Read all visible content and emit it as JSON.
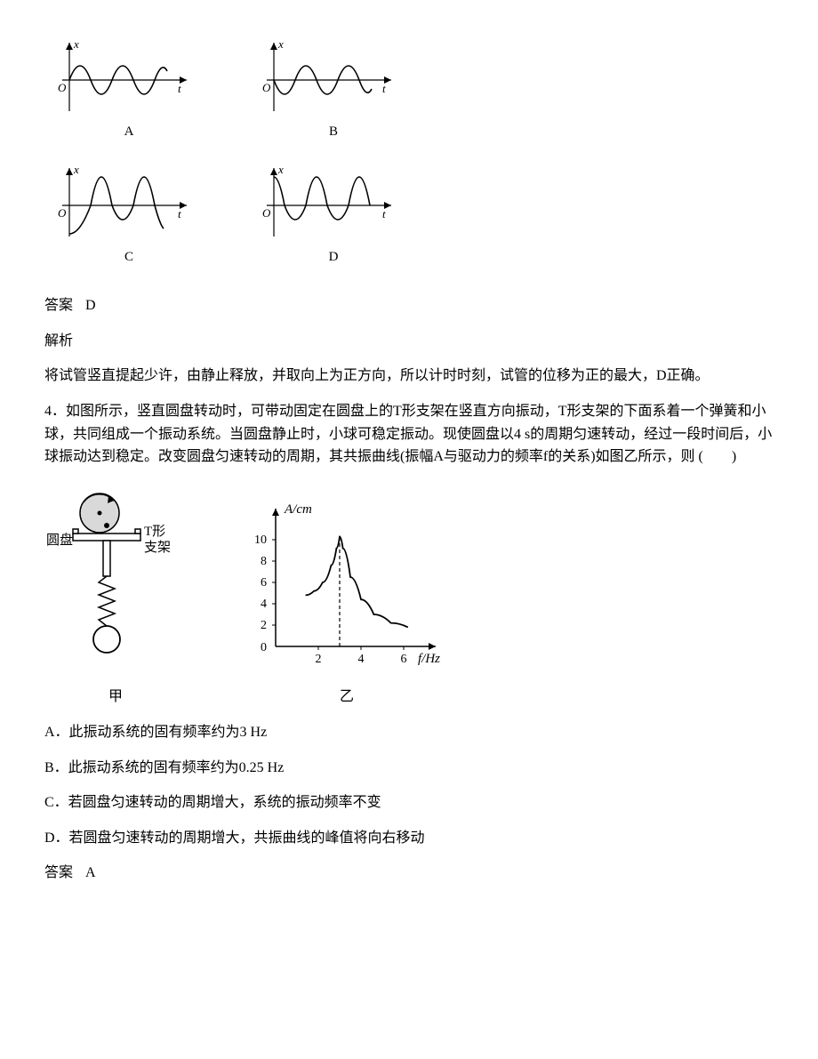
{
  "wave_labels": {
    "A": "A",
    "B": "B",
    "C": "C",
    "D": "D"
  },
  "wave_axes": {
    "x": "x",
    "t": "t",
    "O": "O"
  },
  "wave_style": {
    "axis_color": "#000000",
    "curve_color": "#000000",
    "curve_width": 1.6,
    "axis_width": 1.2
  },
  "answer3": {
    "label": "答案",
    "value": "D"
  },
  "analysis3": {
    "label": "解析",
    "text": "将试管竖直提起少许，由静止释放，并取向上为正方向，所以计时时刻，试管的位移为正的最大，D正确。"
  },
  "question4": {
    "stem": "4．如图所示，竖直圆盘转动时，可带动固定在圆盘上的T形支架在竖直方向振动，T形支架的下面系着一个弹簧和小球，共同组成一个振动系统。当圆盘静止时，小球可稳定振动。现使圆盘以4 s的周期匀速转动，经过一段时间后，小球振动达到稳定。改变圆盘匀速转动的周期，其共振曲线(振幅A与驱动力的频率f的关系)如图乙所示，则 (　　)"
  },
  "diagram_labels": {
    "disk": "圆盘",
    "bracket": "T形\n支架",
    "fig_left": "甲",
    "fig_right": "乙"
  },
  "resonance_chart": {
    "y_axis_label": "A/cm",
    "x_axis_label": "f/Hz",
    "y_ticks": [
      0,
      2,
      4,
      6,
      8,
      10
    ],
    "x_ticks": [
      2,
      4,
      6
    ],
    "peak_f": 3,
    "peak_A": 10.3,
    "curve_points": [
      [
        1.4,
        4.8
      ],
      [
        1.8,
        5.2
      ],
      [
        2.2,
        6.0
      ],
      [
        2.6,
        7.6
      ],
      [
        2.85,
        9.2
      ],
      [
        3.0,
        10.3
      ],
      [
        3.15,
        9.2
      ],
      [
        3.5,
        6.5
      ],
      [
        4.0,
        4.4
      ],
      [
        4.6,
        3.0
      ],
      [
        5.4,
        2.2
      ],
      [
        6.2,
        1.8
      ]
    ],
    "colors": {
      "axis": "#000000",
      "curve": "#000000",
      "dash": "#000000"
    },
    "stroke_width": 1.6
  },
  "options4": {
    "A": "A．此振动系统的固有频率约为3 Hz",
    "B": "B．此振动系统的固有频率约为0.25 Hz",
    "C": "C．若圆盘匀速转动的周期增大，系统的振动频率不变",
    "D": "D．若圆盘匀速转动的周期增大，共振曲线的峰值将向右移动"
  },
  "answer4": {
    "label": "答案",
    "value": "A"
  }
}
